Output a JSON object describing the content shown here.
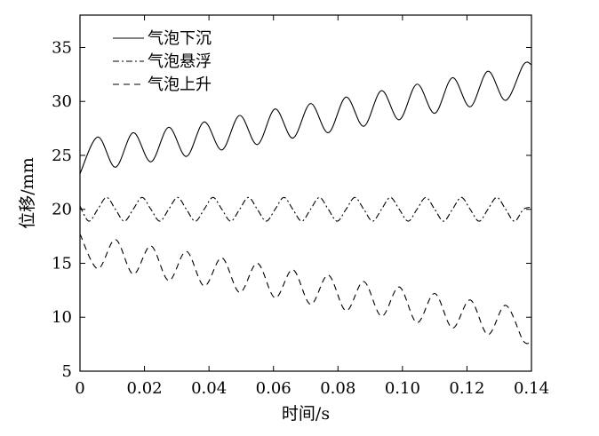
{
  "chart_data": {
    "type": "line",
    "title": "",
    "xlabel": "时间/s",
    "ylabel": "位移/mm",
    "xlim": [
      0,
      0.14
    ],
    "ylim": [
      5,
      38
    ],
    "xticks": [
      0,
      0.02,
      0.04,
      0.06,
      0.08,
      0.1,
      0.12,
      0.14
    ],
    "xtick_labels": [
      "0",
      "0.02",
      "0.04",
      "0.06",
      "0.08",
      "0.10",
      "0.12",
      "0.14"
    ],
    "yticks": [
      5,
      10,
      15,
      20,
      25,
      30,
      35
    ],
    "ytick_labels": [
      "5",
      "10",
      "15",
      "20",
      "25",
      "30",
      "35"
    ],
    "grid": false,
    "legend_position": "top-left",
    "series": [
      {
        "name": "气泡下沉",
        "style": "solid",
        "x": [
          0,
          0.0055,
          0.011,
          0.0165,
          0.022,
          0.0275,
          0.033,
          0.0385,
          0.044,
          0.0495,
          0.055,
          0.0605,
          0.066,
          0.0715,
          0.077,
          0.0825,
          0.088,
          0.0935,
          0.099,
          0.1045,
          0.11,
          0.1155,
          0.121,
          0.1265,
          0.132,
          0.1375,
          0.14
        ],
        "values": [
          23.3,
          26.7,
          23.9,
          27.1,
          24.4,
          27.6,
          24.9,
          28.1,
          25.5,
          28.7,
          26.0,
          29.3,
          26.6,
          29.8,
          27.1,
          30.4,
          27.7,
          31.0,
          28.3,
          31.6,
          28.9,
          32.2,
          29.5,
          32.8,
          30.1,
          33.4,
          33.4
        ]
      },
      {
        "name": "气泡悬浮",
        "style": "dashdot",
        "x": [
          0,
          0.00275,
          0.0055,
          0.00825,
          0.011,
          0.01375,
          0.0165,
          0.01925,
          0.022,
          0.02475,
          0.0275,
          0.03025,
          0.033,
          0.03575,
          0.0385,
          0.04125,
          0.044,
          0.04675,
          0.0495,
          0.05225,
          0.055,
          0.05775,
          0.0605,
          0.06325,
          0.066,
          0.06875,
          0.0715,
          0.07425,
          0.077,
          0.07975,
          0.0825,
          0.08525,
          0.088,
          0.09075,
          0.0935,
          0.09625,
          0.099,
          0.10175,
          0.1045,
          0.10725,
          0.11,
          0.11275,
          0.1155,
          0.11825,
          0.121,
          0.12375,
          0.1265,
          0.12925,
          0.132,
          0.13475,
          0.1375,
          0.14
        ],
        "values": [
          20.3,
          18.9,
          20.0,
          21.1,
          20.0,
          18.9,
          20.0,
          21.1,
          20.0,
          18.9,
          20.0,
          21.1,
          20.0,
          18.9,
          20.0,
          21.1,
          20.0,
          18.9,
          20.0,
          21.1,
          20.0,
          18.9,
          20.0,
          21.1,
          20.0,
          18.9,
          20.0,
          21.1,
          20.0,
          18.9,
          20.0,
          21.1,
          20.0,
          18.9,
          20.0,
          21.1,
          20.0,
          18.9,
          20.0,
          21.1,
          20.0,
          18.9,
          20.0,
          21.1,
          20.0,
          18.9,
          20.0,
          21.1,
          20.0,
          18.9,
          20.0,
          20.2
        ]
      },
      {
        "name": "气泡上升",
        "style": "dashed",
        "x": [
          0,
          0.0055,
          0.011,
          0.0165,
          0.022,
          0.0275,
          0.033,
          0.0385,
          0.044,
          0.0495,
          0.055,
          0.0605,
          0.066,
          0.0715,
          0.077,
          0.0825,
          0.088,
          0.0935,
          0.099,
          0.1045,
          0.11,
          0.1155,
          0.121,
          0.1265,
          0.132,
          0.1375,
          0.14
        ],
        "values": [
          17.7,
          14.5,
          17.2,
          14.0,
          16.6,
          13.4,
          16.1,
          12.9,
          15.5,
          12.3,
          15.0,
          11.8,
          14.4,
          11.2,
          13.9,
          10.6,
          13.3,
          10.1,
          12.8,
          9.5,
          12.2,
          9.0,
          11.6,
          8.4,
          11.1,
          7.8,
          7.8
        ]
      }
    ]
  }
}
